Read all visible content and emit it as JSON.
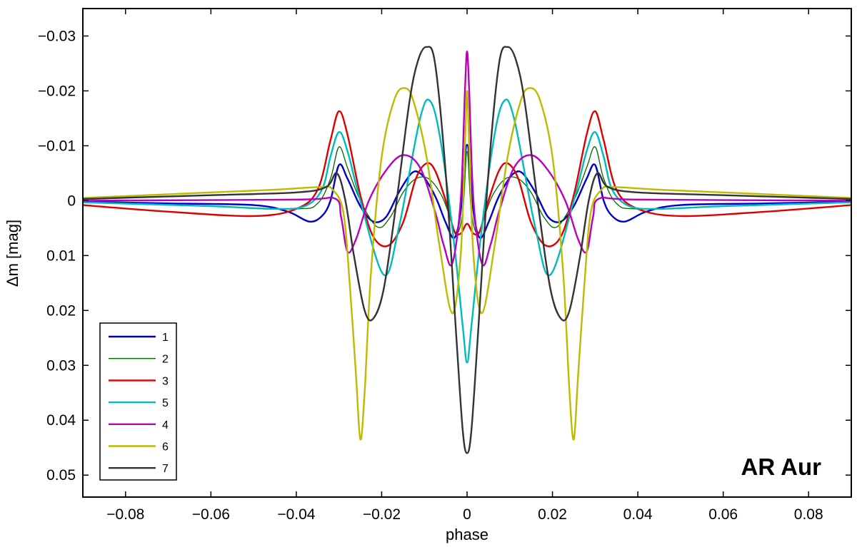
{
  "chart_data": {
    "type": "line",
    "title": "",
    "xlabel": "phase",
    "ylabel": "Δm  [mag]",
    "annotation": "AR Aur",
    "xlim": [
      -0.09,
      0.09
    ],
    "ylim": [
      0.054,
      -0.035
    ],
    "y_inverted": true,
    "grid": false,
    "legend_position": "bottom-left",
    "x_ticks": [
      -0.08,
      -0.06,
      -0.04,
      -0.02,
      0,
      0.02,
      0.04,
      0.06,
      0.08
    ],
    "x_tick_labels": [
      "−0.08",
      "−0.06",
      "−0.04",
      "−0.02",
      "0",
      "0.02",
      "0.04",
      "0.06",
      "0.08"
    ],
    "y_ticks": [
      -0.03,
      -0.02,
      -0.01,
      0,
      0.01,
      0.02,
      0.03,
      0.04,
      0.05
    ],
    "y_tick_labels": [
      "−0.03",
      "−0.02",
      "−0.01",
      "0",
      "0.01",
      "0.02",
      "0.03",
      "0.04",
      "0.05"
    ],
    "series": [
      {
        "name": "1",
        "color": "#0000cc",
        "x": [
          -0.09,
          -0.07,
          -0.05,
          -0.042,
          -0.037,
          -0.034,
          -0.032,
          -0.03,
          -0.028,
          -0.025,
          -0.022,
          -0.019,
          -0.016,
          -0.013,
          -0.011,
          -0.009,
          -0.007,
          -0.005,
          -0.003,
          -0.0015,
          0,
          0.0015,
          0.003,
          0.005,
          0.007,
          0.009,
          0.011,
          0.013,
          0.016,
          0.019,
          0.022,
          0.025,
          0.028,
          0.03,
          0.032,
          0.034,
          0.037,
          0.042,
          0.05,
          0.07,
          0.09
        ],
        "y": [
          0.0002,
          0.0005,
          0.0008,
          0.002,
          0.0038,
          0.0028,
          0.0,
          -0.0065,
          -0.004,
          0.001,
          0.0038,
          0.003,
          -0.0015,
          -0.005,
          -0.005,
          -0.003,
          0.0,
          0.004,
          0.0068,
          0.002,
          -0.0102,
          0.002,
          0.0068,
          0.004,
          0.0,
          -0.003,
          -0.005,
          -0.005,
          -0.0015,
          0.003,
          0.0038,
          0.001,
          -0.004,
          -0.0065,
          0.0,
          0.0028,
          0.0038,
          0.002,
          0.0008,
          0.0005,
          0.0002
        ]
      },
      {
        "name": "2",
        "color": "#006600",
        "x": [
          -0.09,
          -0.06,
          -0.04,
          -0.035,
          -0.032,
          -0.03,
          -0.028,
          -0.025,
          -0.021,
          -0.018,
          -0.015,
          -0.012,
          -0.009,
          -0.006,
          -0.004,
          -0.0025,
          -0.001,
          0,
          0.001,
          0.0025,
          0.004,
          0.006,
          0.009,
          0.012,
          0.015,
          0.018,
          0.021,
          0.025,
          0.028,
          0.03,
          0.032,
          0.035,
          0.04,
          0.06,
          0.09
        ],
        "y": [
          0.0003,
          0.001,
          0.0015,
          0.0005,
          -0.004,
          -0.0098,
          -0.006,
          0.0,
          0.0048,
          0.003,
          -0.0015,
          -0.004,
          -0.004,
          -0.001,
          0.003,
          0.0062,
          0.002,
          -0.009,
          0.002,
          0.0062,
          0.003,
          -0.001,
          -0.004,
          -0.004,
          -0.0015,
          0.003,
          0.0048,
          0.0,
          -0.006,
          -0.0098,
          -0.004,
          0.0005,
          0.0015,
          0.001,
          0.0003
        ]
      },
      {
        "name": "3",
        "color": "#dd0000",
        "x": [
          -0.09,
          -0.07,
          -0.05,
          -0.04,
          -0.035,
          -0.032,
          -0.03,
          -0.028,
          -0.025,
          -0.022,
          -0.0185,
          -0.015,
          -0.012,
          -0.0095,
          -0.0075,
          -0.005,
          -0.003,
          -0.0015,
          0,
          0.0015,
          0.003,
          0.005,
          0.0075,
          0.0095,
          0.012,
          0.015,
          0.0185,
          0.022,
          0.025,
          0.028,
          0.03,
          0.032,
          0.035,
          0.04,
          0.05,
          0.07,
          0.09
        ],
        "y": [
          0.0008,
          0.002,
          0.0028,
          0.0015,
          -0.002,
          -0.011,
          -0.0163,
          -0.012,
          -0.001,
          0.0065,
          0.0082,
          0.004,
          -0.004,
          -0.0068,
          -0.0055,
          0.0,
          0.0055,
          0.006,
          0.0042,
          0.006,
          0.0055,
          0.0,
          -0.0055,
          -0.0068,
          -0.004,
          0.004,
          0.0082,
          0.0065,
          -0.001,
          -0.012,
          -0.0163,
          -0.011,
          -0.002,
          0.0015,
          0.0028,
          0.002,
          0.0008
        ]
      },
      {
        "name": "5",
        "color": "#00bbbb",
        "x": [
          -0.09,
          -0.06,
          -0.045,
          -0.038,
          -0.034,
          -0.032,
          -0.03,
          -0.028,
          -0.025,
          -0.0195,
          -0.016,
          -0.011,
          -0.0085,
          -0.006,
          -0.003,
          -0.001,
          0,
          0.001,
          0.003,
          0.006,
          0.0085,
          0.011,
          0.016,
          0.0195,
          0.025,
          0.028,
          0.03,
          0.032,
          0.034,
          0.038,
          0.045,
          0.06,
          0.09
        ],
        "y": [
          0.0003,
          0.001,
          0.0015,
          0.001,
          -0.002,
          -0.008,
          -0.0125,
          -0.009,
          0.0,
          0.0135,
          0.005,
          -0.015,
          -0.018,
          -0.01,
          0.008,
          0.023,
          0.0295,
          0.023,
          0.008,
          -0.01,
          -0.018,
          -0.015,
          0.005,
          0.0135,
          0.0,
          -0.009,
          -0.0125,
          -0.008,
          -0.002,
          0.001,
          0.0015,
          0.001,
          0.0003
        ]
      },
      {
        "name": "4",
        "color": "#bb00bb",
        "x": [
          -0.09,
          -0.04,
          -0.031,
          -0.0295,
          -0.028,
          -0.026,
          -0.023,
          -0.019,
          -0.015,
          -0.011,
          -0.0075,
          -0.0055,
          -0.0035,
          -0.0015,
          -0.0005,
          0,
          0.0005,
          0.0015,
          0.0035,
          0.0055,
          0.0075,
          0.011,
          0.015,
          0.019,
          0.023,
          0.026,
          0.028,
          0.0295,
          0.031,
          0.04,
          0.09
        ],
        "y": [
          0.0,
          -0.0002,
          -0.0004,
          0.003,
          0.0093,
          0.007,
          0.0,
          -0.0055,
          -0.0083,
          -0.006,
          0.002,
          0.008,
          0.0115,
          0.0,
          -0.02,
          -0.0272,
          -0.02,
          0.0,
          0.0115,
          0.008,
          0.002,
          -0.006,
          -0.0083,
          -0.0055,
          0.0,
          0.007,
          0.0093,
          0.003,
          -0.0004,
          -0.0002,
          0.0
        ]
      },
      {
        "name": "6",
        "color": "#bbbb00",
        "x": [
          -0.09,
          -0.06,
          -0.045,
          -0.034,
          -0.0315,
          -0.029,
          -0.0275,
          -0.026,
          -0.025,
          -0.024,
          -0.0225,
          -0.02,
          -0.017,
          -0.0145,
          -0.0125,
          -0.0095,
          -0.0065,
          -0.0035,
          -0.0015,
          -0.0005,
          0,
          0.0005,
          0.0015,
          0.0035,
          0.0065,
          0.0095,
          0.0125,
          0.0145,
          0.017,
          0.02,
          0.0225,
          0.024,
          0.025,
          0.026,
          0.0275,
          0.029,
          0.0315,
          0.034,
          0.045,
          0.06,
          0.09
        ],
        "y": [
          -0.0005,
          -0.0015,
          -0.002,
          -0.0025,
          -0.002,
          0.002,
          0.015,
          0.032,
          0.0435,
          0.035,
          0.013,
          -0.008,
          -0.0185,
          -0.0205,
          -0.018,
          -0.008,
          0.008,
          0.0205,
          0.01,
          -0.01,
          -0.02,
          -0.01,
          0.01,
          0.0205,
          0.008,
          -0.008,
          -0.018,
          -0.0205,
          -0.0185,
          -0.008,
          0.013,
          0.035,
          0.0435,
          0.032,
          0.015,
          0.002,
          -0.002,
          -0.0025,
          -0.002,
          -0.0015,
          -0.0005
        ]
      },
      {
        "name": "7",
        "color": "#333333",
        "x": [
          -0.09,
          -0.06,
          -0.04,
          -0.033,
          -0.0305,
          -0.0285,
          -0.0265,
          -0.024,
          -0.022,
          -0.0195,
          -0.0165,
          -0.0135,
          -0.0115,
          -0.0095,
          -0.0075,
          -0.005,
          -0.0025,
          -0.001,
          0,
          0.001,
          0.0025,
          0.005,
          0.0075,
          0.0095,
          0.0115,
          0.0135,
          0.0165,
          0.0195,
          0.022,
          0.024,
          0.0265,
          0.0285,
          0.0305,
          0.033,
          0.04,
          0.06,
          0.09
        ],
        "y": [
          -0.0003,
          -0.001,
          -0.0015,
          -0.0025,
          -0.005,
          0.0,
          0.01,
          0.02,
          0.0215,
          0.016,
          0.0,
          -0.018,
          -0.0255,
          -0.028,
          -0.025,
          -0.005,
          0.025,
          0.042,
          0.046,
          0.042,
          0.025,
          -0.005,
          -0.025,
          -0.028,
          -0.0255,
          -0.018,
          0.0,
          0.016,
          0.0215,
          0.02,
          0.01,
          0.0,
          -0.005,
          -0.0025,
          -0.0015,
          -0.001,
          -0.0003
        ]
      }
    ]
  }
}
